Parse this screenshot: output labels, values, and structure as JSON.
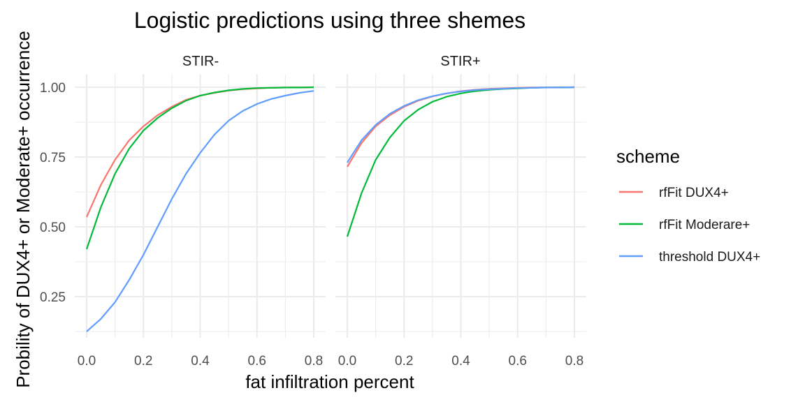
{
  "chart_data": {
    "type": "line",
    "title": "Logistic predictions using three shemes",
    "xlabel": "fat infiltration percent",
    "ylabel": "Probility of DUX4+ or Moderate+ occurrence",
    "xlim": [
      0,
      0.8
    ],
    "ylim": [
      0.125,
      1.0
    ],
    "x_ticks": [
      "0.0",
      "0.2",
      "0.4",
      "0.6",
      "0.8"
    ],
    "y_ticks": [
      "0.25",
      "0.50",
      "0.75",
      "1.00"
    ],
    "grid": true,
    "legend": {
      "title": "scheme",
      "position": "right",
      "entries": [
        "rfFit DUX4+",
        "rfFit Moderare+",
        "threshold DUX4+"
      ]
    },
    "colors": {
      "rfFit DUX4+": "#F8766D",
      "rfFit Moderare+": "#00BA38",
      "threshold DUX4+": "#619CFF"
    },
    "panels": [
      {
        "label": "STIR-",
        "series": [
          {
            "name": "rfFit DUX4+",
            "x": [
              0,
              0.05,
              0.1,
              0.15,
              0.2,
              0.25,
              0.3,
              0.35,
              0.4,
              0.45,
              0.5,
              0.55,
              0.6,
              0.65,
              0.7,
              0.75,
              0.8
            ],
            "y": [
              0.535,
              0.65,
              0.74,
              0.81,
              0.86,
              0.9,
              0.93,
              0.955,
              0.97,
              0.98,
              0.988,
              0.993,
              0.996,
              0.998,
              0.999,
              0.999,
              1.0
            ]
          },
          {
            "name": "rfFit Moderare+",
            "x": [
              0,
              0.05,
              0.1,
              0.15,
              0.2,
              0.25,
              0.3,
              0.35,
              0.4,
              0.45,
              0.5,
              0.55,
              0.6,
              0.65,
              0.7,
              0.75,
              0.8
            ],
            "y": [
              0.42,
              0.57,
              0.69,
              0.78,
              0.845,
              0.89,
              0.925,
              0.952,
              0.97,
              0.981,
              0.989,
              0.994,
              0.997,
              0.998,
              0.999,
              0.999,
              1.0
            ]
          },
          {
            "name": "threshold DUX4+",
            "x": [
              0,
              0.05,
              0.1,
              0.15,
              0.2,
              0.25,
              0.3,
              0.35,
              0.4,
              0.45,
              0.5,
              0.55,
              0.6,
              0.65,
              0.7,
              0.75,
              0.8
            ],
            "y": [
              0.125,
              0.17,
              0.23,
              0.31,
              0.4,
              0.5,
              0.6,
              0.69,
              0.765,
              0.83,
              0.88,
              0.915,
              0.94,
              0.958,
              0.97,
              0.98,
              0.987
            ]
          }
        ]
      },
      {
        "label": "STIR+",
        "series": [
          {
            "name": "rfFit DUX4+",
            "x": [
              0,
              0.05,
              0.1,
              0.15,
              0.2,
              0.25,
              0.3,
              0.35,
              0.4,
              0.45,
              0.5,
              0.55,
              0.6,
              0.65,
              0.7,
              0.75,
              0.8
            ],
            "y": [
              0.715,
              0.8,
              0.86,
              0.9,
              0.93,
              0.952,
              0.967,
              0.978,
              0.986,
              0.991,
              0.994,
              0.996,
              0.998,
              0.999,
              0.999,
              1.0,
              1.0
            ]
          },
          {
            "name": "rfFit Moderare+",
            "x": [
              0,
              0.05,
              0.1,
              0.15,
              0.2,
              0.25,
              0.3,
              0.35,
              0.4,
              0.45,
              0.5,
              0.55,
              0.6,
              0.65,
              0.7,
              0.75,
              0.8
            ],
            "y": [
              0.465,
              0.62,
              0.74,
              0.82,
              0.88,
              0.92,
              0.948,
              0.966,
              0.978,
              0.986,
              0.991,
              0.994,
              0.996,
              0.998,
              0.999,
              0.999,
              1.0
            ]
          },
          {
            "name": "threshold DUX4+",
            "x": [
              0,
              0.05,
              0.1,
              0.15,
              0.2,
              0.25,
              0.3,
              0.35,
              0.4,
              0.45,
              0.5,
              0.55,
              0.6,
              0.65,
              0.7,
              0.75,
              0.8
            ],
            "y": [
              0.73,
              0.81,
              0.865,
              0.905,
              0.933,
              0.954,
              0.968,
              0.978,
              0.985,
              0.99,
              0.993,
              0.995,
              0.997,
              0.998,
              0.999,
              0.999,
              1.0
            ]
          }
        ]
      }
    ]
  }
}
